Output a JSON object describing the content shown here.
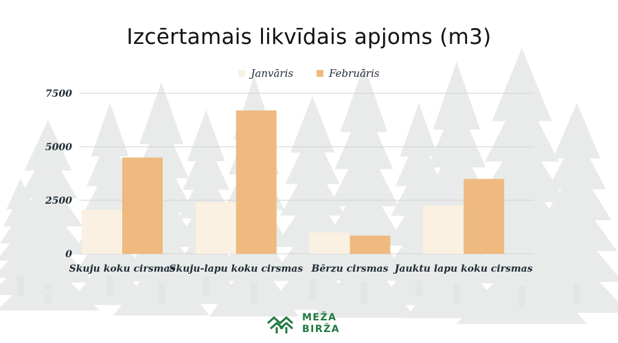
{
  "chart_data": {
    "type": "bar",
    "title": "Izcērtamais likvīdais apjoms (m3)",
    "categories": [
      "Skuju koku cirsmas",
      "Skuju-lapu koku cirsmas",
      "Bērzu cirsmas",
      "Jauktu lapu koku cirsmas"
    ],
    "series": [
      {
        "name": "Janvāris",
        "values": [
          2050,
          2400,
          1000,
          2250
        ],
        "color": "#faf1e2"
      },
      {
        "name": "Februāris",
        "values": [
          4500,
          6700,
          850,
          3500
        ],
        "color": "#eeba7f"
      }
    ],
    "yticks": [
      0,
      2500,
      5000,
      7500
    ],
    "ylim": [
      0,
      7500
    ],
    "grid": true,
    "legend_position": "top-center"
  },
  "logo": {
    "line1": "MEŽA",
    "line2": "BIRŽA",
    "color": "#1f7a3f"
  }
}
